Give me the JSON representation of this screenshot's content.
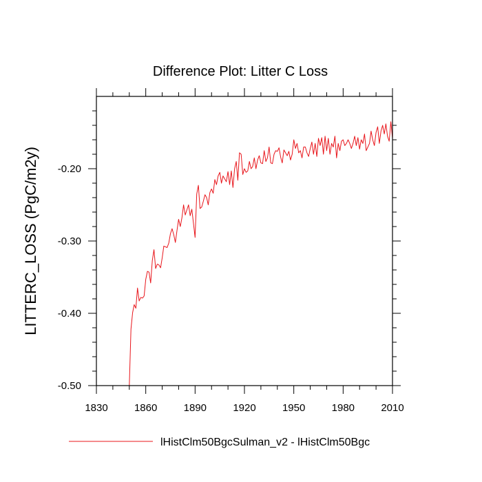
{
  "chart_data": {
    "type": "line",
    "title": "Difference Plot: Litter C Loss",
    "xlabel": "",
    "ylabel": "LITTERC_LOSS  (PgC/m2y)",
    "xlim": [
      1830,
      2010
    ],
    "ylim": [
      -0.5,
      -0.1
    ],
    "x_ticks": [
      1830,
      1860,
      1890,
      1920,
      1950,
      1980,
      2010
    ],
    "x_tick_labels": [
      "1830",
      "1860",
      "1890",
      "1920",
      "1950",
      "1980",
      "2010"
    ],
    "y_ticks": [
      -0.5,
      -0.4,
      -0.3,
      -0.2
    ],
    "y_tick_labels": [
      "-0.50",
      "-0.40",
      "-0.30",
      "-0.20"
    ],
    "grid": false,
    "legend_position": "bottom",
    "series": [
      {
        "name": "lHistClm50BgcSulman_v2 - lHistClm50Bgc",
        "color": "#e8141a",
        "x": [
          1850,
          1851,
          1852,
          1853,
          1854,
          1855,
          1856,
          1857,
          1858,
          1859,
          1860,
          1861,
          1862,
          1863,
          1864,
          1865,
          1866,
          1867,
          1868,
          1869,
          1870,
          1871,
          1872,
          1873,
          1874,
          1875,
          1876,
          1877,
          1878,
          1879,
          1880,
          1881,
          1882,
          1883,
          1884,
          1885,
          1886,
          1887,
          1888,
          1889,
          1890,
          1891,
          1892,
          1893,
          1894,
          1895,
          1896,
          1897,
          1898,
          1899,
          1900,
          1901,
          1902,
          1903,
          1904,
          1905,
          1906,
          1907,
          1908,
          1909,
          1910,
          1911,
          1912,
          1913,
          1914,
          1915,
          1916,
          1917,
          1918,
          1919,
          1920,
          1921,
          1922,
          1923,
          1924,
          1925,
          1926,
          1927,
          1928,
          1929,
          1930,
          1931,
          1932,
          1933,
          1934,
          1935,
          1936,
          1937,
          1938,
          1939,
          1940,
          1941,
          1942,
          1943,
          1944,
          1945,
          1946,
          1947,
          1948,
          1949,
          1950,
          1951,
          1952,
          1953,
          1954,
          1955,
          1956,
          1957,
          1958,
          1959,
          1960,
          1961,
          1962,
          1963,
          1964,
          1965,
          1966,
          1967,
          1968,
          1969,
          1970,
          1971,
          1972,
          1973,
          1974,
          1975,
          1976,
          1977,
          1978,
          1979,
          1980,
          1981,
          1982,
          1983,
          1984,
          1985,
          1986,
          1987,
          1988,
          1989,
          1990,
          1991,
          1992,
          1993,
          1994,
          1995,
          1996,
          1997,
          1998,
          1999,
          2000,
          2001,
          2002,
          2003,
          2004,
          2005,
          2006,
          2007,
          2008,
          2009,
          2010
        ],
        "y": [
          -0.5,
          -0.422,
          -0.399,
          -0.388,
          -0.393,
          -0.365,
          -0.383,
          -0.378,
          -0.379,
          -0.376,
          -0.353,
          -0.342,
          -0.343,
          -0.358,
          -0.327,
          -0.312,
          -0.338,
          -0.332,
          -0.333,
          -0.337,
          -0.323,
          -0.307,
          -0.308,
          -0.309,
          -0.303,
          -0.29,
          -0.283,
          -0.291,
          -0.302,
          -0.285,
          -0.27,
          -0.28,
          -0.268,
          -0.25,
          -0.264,
          -0.257,
          -0.25,
          -0.265,
          -0.256,
          -0.275,
          -0.295,
          -0.235,
          -0.223,
          -0.255,
          -0.253,
          -0.245,
          -0.236,
          -0.24,
          -0.25,
          -0.233,
          -0.228,
          -0.234,
          -0.215,
          -0.222,
          -0.21,
          -0.205,
          -0.22,
          -0.21,
          -0.214,
          -0.218,
          -0.204,
          -0.222,
          -0.203,
          -0.226,
          -0.2,
          -0.19,
          -0.216,
          -0.178,
          -0.18,
          -0.208,
          -0.2,
          -0.205,
          -0.203,
          -0.19,
          -0.2,
          -0.197,
          -0.185,
          -0.2,
          -0.188,
          -0.182,
          -0.192,
          -0.193,
          -0.175,
          -0.19,
          -0.185,
          -0.17,
          -0.192,
          -0.193,
          -0.18,
          -0.175,
          -0.176,
          -0.171,
          -0.184,
          -0.192,
          -0.174,
          -0.178,
          -0.182,
          -0.176,
          -0.188,
          -0.18,
          -0.16,
          -0.172,
          -0.165,
          -0.178,
          -0.175,
          -0.185,
          -0.17,
          -0.17,
          -0.178,
          -0.183,
          -0.172,
          -0.163,
          -0.18,
          -0.165,
          -0.183,
          -0.158,
          -0.168,
          -0.157,
          -0.18,
          -0.155,
          -0.175,
          -0.158,
          -0.18,
          -0.165,
          -0.17,
          -0.155,
          -0.185,
          -0.165,
          -0.175,
          -0.162,
          -0.16,
          -0.168,
          -0.165,
          -0.16,
          -0.165,
          -0.172,
          -0.165,
          -0.155,
          -0.168,
          -0.157,
          -0.173,
          -0.16,
          -0.165,
          -0.152,
          -0.175,
          -0.17,
          -0.165,
          -0.148,
          -0.16,
          -0.168,
          -0.15,
          -0.142,
          -0.165,
          -0.148,
          -0.14,
          -0.152,
          -0.138,
          -0.155,
          -0.162,
          -0.135,
          -0.158
        ]
      }
    ]
  }
}
